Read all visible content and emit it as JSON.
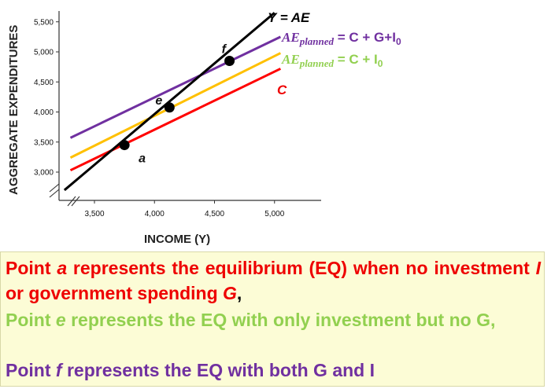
{
  "chart_data": {
    "type": "line",
    "xlabel": "INCOME (Y)",
    "ylabel": "AGGREGATE EXPENDITURES",
    "xlim": [
      3250,
      5450
    ],
    "ylim": [
      2750,
      5700
    ],
    "x_ticks": [
      "3,500",
      "4,000",
      "4,500",
      "5,000"
    ],
    "y_ticks": [
      "3,000",
      "3,500",
      "4,000",
      "4,500",
      "5,000",
      "5,500"
    ],
    "x_tick_values": [
      3500,
      4000,
      4500,
      5000
    ],
    "y_tick_values": [
      3000,
      3500,
      4000,
      4500,
      5000,
      5500
    ],
    "series": [
      {
        "name": "Y = AE",
        "color": "#000000",
        "x": [
          3250,
          5000
        ],
        "y": [
          2700,
          5650
        ]
      },
      {
        "name": "AE_planned = C + G+I0",
        "color": "#7030a0",
        "x": [
          3300,
          5050
        ],
        "y": [
          3570,
          5250
        ]
      },
      {
        "name": "AE_planned = C + I0",
        "color": "#ffc000",
        "x": [
          3300,
          5050
        ],
        "y": [
          3240,
          4980
        ]
      },
      {
        "name": "C",
        "color": "#ff0000",
        "x": [
          3300,
          5050
        ],
        "y": [
          3030,
          4720
        ]
      }
    ],
    "points": [
      {
        "label": "a",
        "x": 3750,
        "y": 3450
      },
      {
        "label": "e",
        "x": 4125,
        "y": 4075
      },
      {
        "label": "f",
        "x": 4625,
        "y": 4850
      }
    ],
    "legend_labels": {
      "yae": "Y = AE",
      "ae_planned": "AE",
      "planned_sub": "planned",
      "purple_rest": " = C + G+I",
      "yellow_rest": " = C + I",
      "zero_sub": "0",
      "c": "C"
    }
  },
  "caption": {
    "line1_a": "Point ",
    "line1_b": "a",
    "line1_c": " represents the equilibrium (EQ) when no investment ",
    "line1_d": "I",
    "line1_e": " or government spending ",
    "line1_f": "G",
    "line1_g": ",",
    "line2_a": "Point ",
    "line2_b": "e",
    "line2_c": " represents the EQ with only investment but no G,",
    "line3_a": "Point ",
    "line3_b": "f",
    "line3_c": " represents the EQ with both G and I",
    "color_red": "#ee0000",
    "color_green": "#92d050",
    "color_purple": "#7030a0"
  }
}
